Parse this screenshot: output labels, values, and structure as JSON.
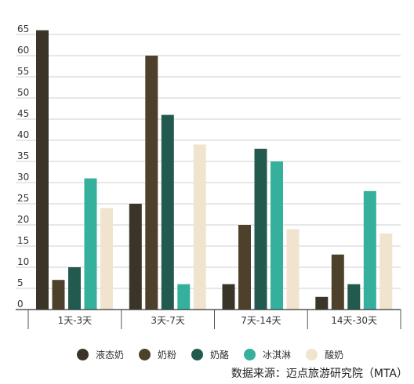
{
  "chart_data": {
    "type": "bar",
    "categories": [
      "1天-3天",
      "3天-7天",
      "7天-14天",
      "14天-30天"
    ],
    "series": [
      {
        "name": "液态奶",
        "values": [
          66,
          25,
          6,
          3
        ],
        "color": "#3a3528"
      },
      {
        "name": "奶粉",
        "values": [
          7,
          60,
          20,
          13
        ],
        "color": "#4e412b"
      },
      {
        "name": "奶酪",
        "values": [
          10,
          46,
          38,
          6
        ],
        "color": "#235a50"
      },
      {
        "name": "冰淇淋",
        "values": [
          31,
          6,
          35,
          28
        ],
        "color": "#35b09c"
      },
      {
        "name": "酸奶",
        "values": [
          24,
          39,
          19,
          18
        ],
        "color": "#f1e4cf"
      }
    ],
    "yticks": [
      0,
      5,
      10,
      15,
      20,
      25,
      30,
      35,
      40,
      45,
      50,
      55,
      60,
      65
    ],
    "ylim": [
      0,
      67
    ],
    "grid": true,
    "legend": "bottom",
    "source": "数据来源：迈点旅游研究院（MTA）"
  }
}
